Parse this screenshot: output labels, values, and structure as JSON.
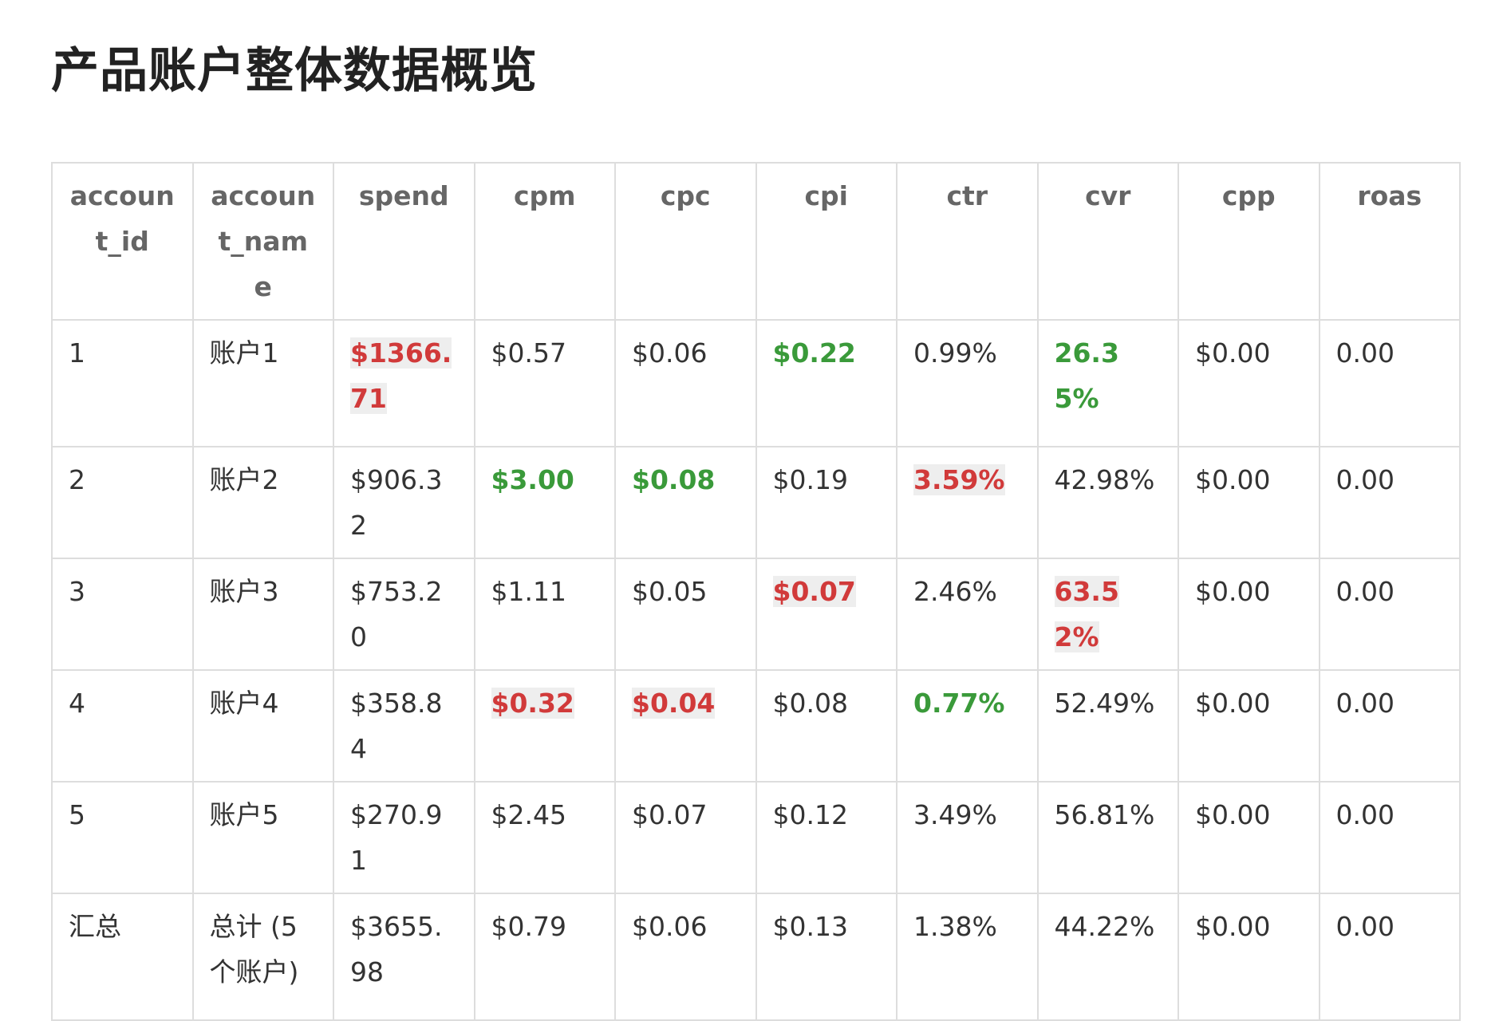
{
  "header": {
    "title": "产品账户整体数据概览"
  },
  "table": {
    "columns": [
      "account_id",
      "account_name",
      "spend",
      "cpm",
      "cpc",
      "cpi",
      "ctr",
      "cvr",
      "cpp",
      "roas"
    ],
    "rows": [
      [
        "1",
        "账户1",
        "$1366.71",
        "$0.57",
        "$0.06",
        "$0.22",
        "0.99%",
        "26.35%",
        "$0.00",
        "0.00"
      ],
      [
        "2",
        "账户2",
        "$906.32",
        "$3.00",
        "$0.08",
        "$0.19",
        "3.59%",
        "42.98%",
        "$0.00",
        "0.00"
      ],
      [
        "3",
        "账户3",
        "$753.20",
        "$1.11",
        "$0.05",
        "$0.07",
        "2.46%",
        "63.52%",
        "$0.00",
        "0.00"
      ],
      [
        "4",
        "账户4",
        "$358.84",
        "$0.32",
        "$0.04",
        "$0.08",
        "0.77%",
        "52.49%",
        "$0.00",
        "0.00"
      ],
      [
        "5",
        "账户5",
        "$270.91",
        "$2.45",
        "$0.07",
        "$0.12",
        "3.49%",
        "56.81%",
        "$0.00",
        "0.00"
      ],
      [
        "汇总",
        "总计 (5个账户)",
        "$3655.98",
        "$0.79",
        "$0.06",
        "$0.13",
        "1.38%",
        "44.22%",
        "$0.00",
        "0.00"
      ]
    ]
  }
}
